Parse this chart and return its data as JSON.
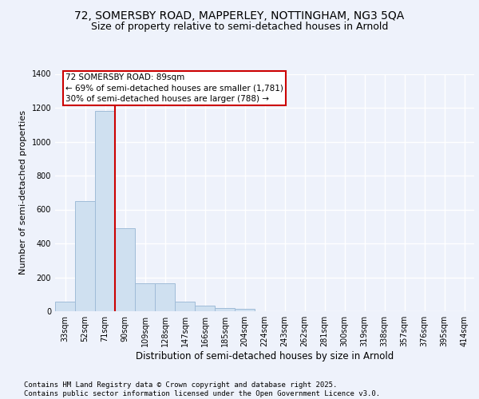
{
  "title_line1": "72, SOMERSBY ROAD, MAPPERLEY, NOTTINGHAM, NG3 5QA",
  "title_line2": "Size of property relative to semi-detached houses in Arnold",
  "xlabel": "Distribution of semi-detached houses by size in Arnold",
  "ylabel": "Number of semi-detached properties",
  "bins": [
    "33sqm",
    "52sqm",
    "71sqm",
    "90sqm",
    "109sqm",
    "128sqm",
    "147sqm",
    "166sqm",
    "185sqm",
    "204sqm",
    "224sqm",
    "243sqm",
    "262sqm",
    "281sqm",
    "300sqm",
    "319sqm",
    "338sqm",
    "357sqm",
    "376sqm",
    "395sqm",
    "414sqm"
  ],
  "values": [
    55,
    650,
    1180,
    490,
    165,
    165,
    55,
    35,
    20,
    12,
    0,
    0,
    0,
    0,
    0,
    0,
    0,
    0,
    0,
    0,
    0
  ],
  "bar_color": "#cfe0f0",
  "bar_edge_color": "#a0bcd8",
  "property_line_color": "#cc0000",
  "annotation_text": "72 SOMERSBY ROAD: 89sqm\n← 69% of semi-detached houses are smaller (1,781)\n30% of semi-detached houses are larger (788) →",
  "annotation_box_facecolor": "#ffffff",
  "annotation_box_edgecolor": "#cc0000",
  "ylim": [
    0,
    1400
  ],
  "yticks": [
    0,
    200,
    400,
    600,
    800,
    1000,
    1200,
    1400
  ],
  "background_color": "#eef2fb",
  "grid_color": "#ffffff",
  "footer_text": "Contains HM Land Registry data © Crown copyright and database right 2025.\nContains public sector information licensed under the Open Government Licence v3.0.",
  "title_fontsize": 10,
  "subtitle_fontsize": 9,
  "ylabel_fontsize": 8,
  "xlabel_fontsize": 8.5,
  "tick_fontsize": 7,
  "footer_fontsize": 6.5,
  "annotation_fontsize": 7.5
}
